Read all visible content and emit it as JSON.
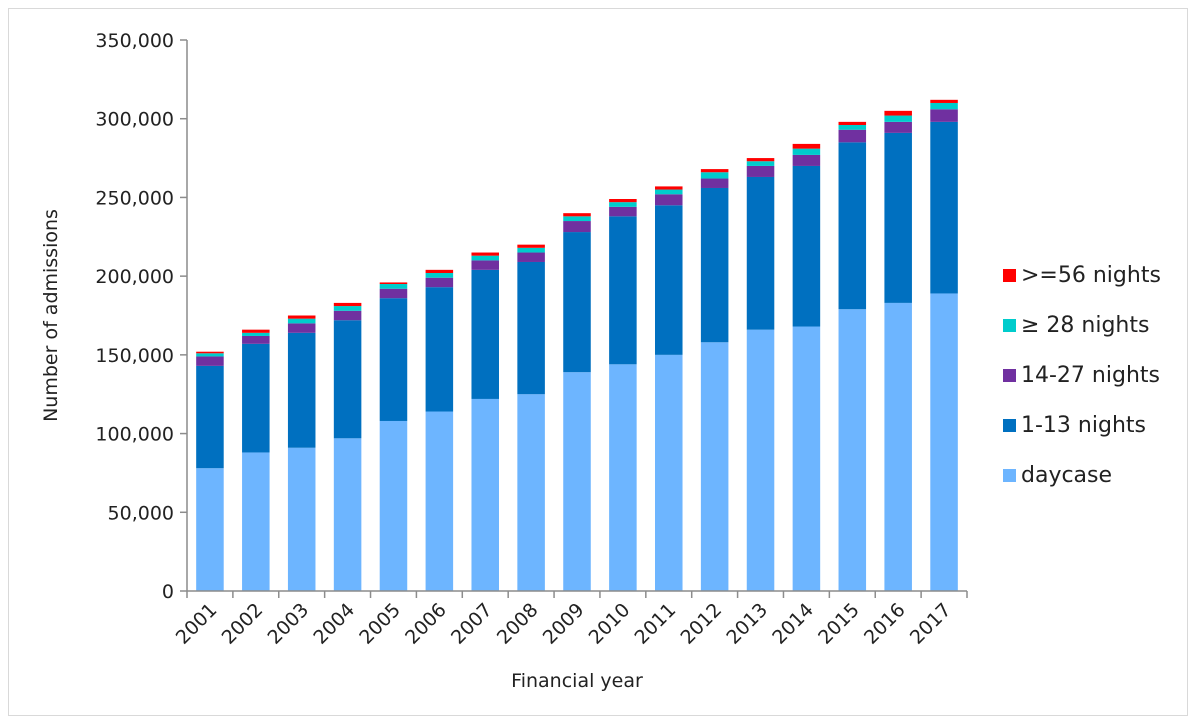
{
  "chart_data": {
    "type": "bar",
    "stacked": true,
    "title": "",
    "xlabel": "Financial year",
    "ylabel": "Number of admissions",
    "ylim": [
      0,
      350000
    ],
    "ytick_step": 50000,
    "ytick_labels": [
      "0",
      "50,000",
      "100,000",
      "150,000",
      "200,000",
      "250,000",
      "300,000",
      "350,000"
    ],
    "grid": false,
    "legend_position": "right",
    "categories": [
      "2001",
      "2002",
      "2003",
      "2004",
      "2005",
      "2006",
      "2007",
      "2008",
      "2009",
      "2010",
      "2011",
      "2012",
      "2013",
      "2014",
      "2015",
      "2016",
      "2017"
    ],
    "series": [
      {
        "name": "daycase",
        "color": "#6DB5FF",
        "values": [
          78000,
          88000,
          91000,
          97000,
          108000,
          114000,
          122000,
          125000,
          139000,
          144000,
          150000,
          158000,
          166000,
          168000,
          179000,
          183000,
          189000
        ]
      },
      {
        "name": "1-13 nights",
        "color": "#0070C0",
        "values": [
          65000,
          69000,
          73000,
          75000,
          78000,
          79000,
          82000,
          84000,
          89000,
          94000,
          95000,
          98000,
          97000,
          102000,
          106000,
          108000,
          109000
        ]
      },
      {
        "name": "14-27 nights",
        "color": "#7030A0",
        "values": [
          6000,
          5000,
          6000,
          6000,
          6000,
          6000,
          6000,
          6000,
          7000,
          6000,
          7000,
          6000,
          7000,
          7000,
          8000,
          7000,
          8000
        ]
      },
      {
        "name": "≥ 28 nights",
        "color": "#00CCCC",
        "values": [
          2000,
          2000,
          3000,
          3000,
          3000,
          3000,
          3000,
          3000,
          3000,
          3000,
          3000,
          4000,
          3000,
          4000,
          3000,
          4000,
          4000
        ]
      },
      {
        "name": ">=56 nights",
        "color": "#FF0000",
        "values": [
          1000,
          2000,
          2000,
          2000,
          1000,
          2000,
          2000,
          2000,
          2000,
          2000,
          2000,
          2000,
          2000,
          3000,
          2000,
          3000,
          2000
        ]
      }
    ]
  }
}
